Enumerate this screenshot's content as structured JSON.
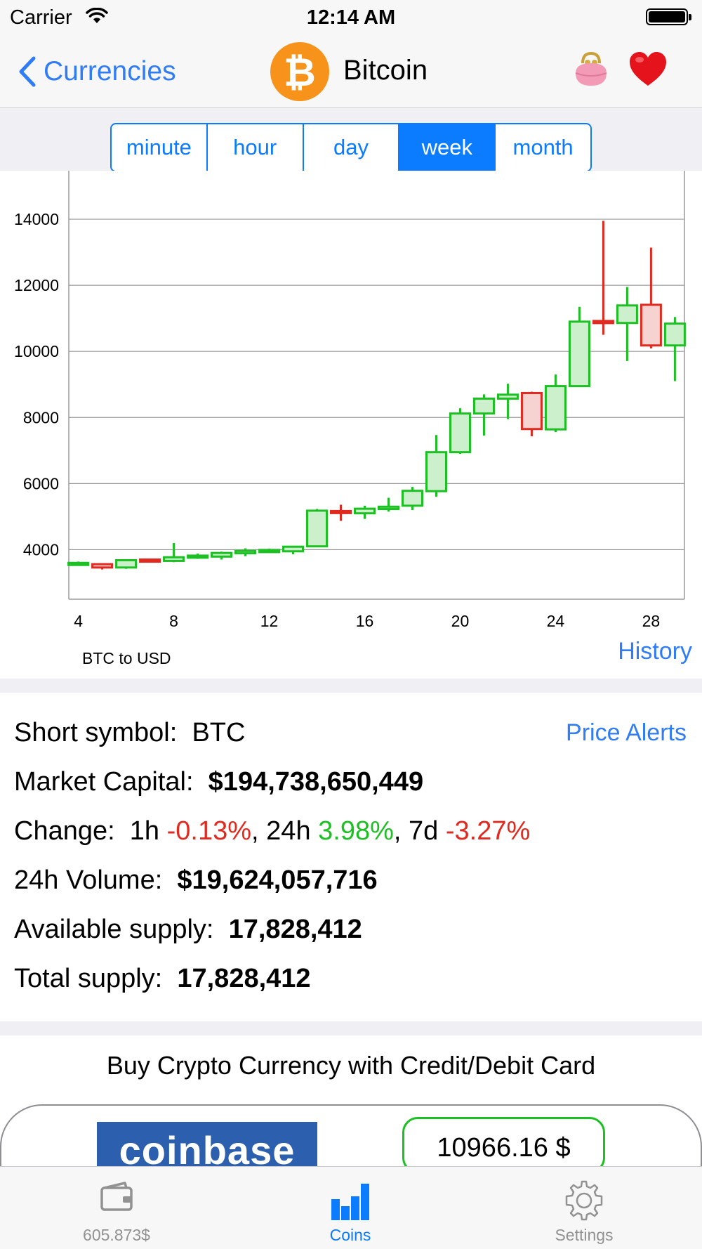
{
  "status_bar": {
    "carrier": "Carrier",
    "time": "12:14 AM"
  },
  "nav": {
    "back_label": "Currencies",
    "coin_symbol_glyph": "₿",
    "coin_name": "Bitcoin"
  },
  "segments": [
    {
      "label": "minute",
      "active": false
    },
    {
      "label": "hour",
      "active": false
    },
    {
      "label": "day",
      "active": false
    },
    {
      "label": "week",
      "active": true
    },
    {
      "label": "month",
      "active": false
    }
  ],
  "chart_data": {
    "type": "candlestick",
    "title": "",
    "caption": "BTC to USD",
    "x_ticks": [
      4,
      8,
      12,
      16,
      20,
      24,
      28
    ],
    "y_ticks": [
      4000,
      6000,
      8000,
      10000,
      12000,
      14000
    ],
    "xlim": [
      3.6,
      29.4
    ],
    "ylim": [
      2500,
      15000
    ],
    "grid": true,
    "colors": {
      "up": "#1cc022",
      "up_fill": "#ccefcc",
      "down": "#e0291f",
      "down_fill": "#f6d3d1"
    },
    "candles": [
      {
        "x": 4,
        "open": 3560,
        "close": 3600,
        "high": 3640,
        "low": 3530
      },
      {
        "x": 5,
        "open": 3560,
        "close": 3460,
        "high": 3580,
        "low": 3400
      },
      {
        "x": 6,
        "open": 3460,
        "close": 3680,
        "high": 3700,
        "low": 3420
      },
      {
        "x": 7,
        "open": 3700,
        "close": 3660,
        "high": 3720,
        "low": 3620
      },
      {
        "x": 8,
        "open": 3660,
        "close": 3770,
        "high": 4200,
        "low": 3620
      },
      {
        "x": 9,
        "open": 3760,
        "close": 3820,
        "high": 3880,
        "low": 3720
      },
      {
        "x": 10,
        "open": 3790,
        "close": 3900,
        "high": 3940,
        "low": 3700
      },
      {
        "x": 11,
        "open": 3890,
        "close": 3960,
        "high": 4040,
        "low": 3800
      },
      {
        "x": 12,
        "open": 3960,
        "close": 3990,
        "high": 4030,
        "low": 3920
      },
      {
        "x": 13,
        "open": 3950,
        "close": 4090,
        "high": 4110,
        "low": 3860
      },
      {
        "x": 14,
        "open": 4100,
        "close": 5180,
        "high": 5230,
        "low": 4080
      },
      {
        "x": 15,
        "open": 5170,
        "close": 5160,
        "high": 5360,
        "low": 4870
      },
      {
        "x": 16,
        "open": 5100,
        "close": 5240,
        "high": 5330,
        "low": 4930
      },
      {
        "x": 17,
        "open": 5230,
        "close": 5300,
        "high": 5570,
        "low": 5150
      },
      {
        "x": 18,
        "open": 5330,
        "close": 5780,
        "high": 5900,
        "low": 5200
      },
      {
        "x": 19,
        "open": 5770,
        "close": 6950,
        "high": 7470,
        "low": 5600
      },
      {
        "x": 20,
        "open": 6950,
        "close": 8120,
        "high": 8280,
        "low": 6900
      },
      {
        "x": 21,
        "open": 8120,
        "close": 8570,
        "high": 8700,
        "low": 7450
      },
      {
        "x": 22,
        "open": 8570,
        "close": 8690,
        "high": 9020,
        "low": 7950
      },
      {
        "x": 23,
        "open": 8740,
        "close": 7650,
        "high": 8780,
        "low": 7430
      },
      {
        "x": 24,
        "open": 7640,
        "close": 8950,
        "high": 9300,
        "low": 7560
      },
      {
        "x": 25,
        "open": 8950,
        "close": 10900,
        "high": 11350,
        "low": 8950
      },
      {
        "x": 26,
        "open": 10920,
        "close": 10870,
        "high": 13950,
        "low": 10500
      },
      {
        "x": 27,
        "open": 10860,
        "close": 11390,
        "high": 11950,
        "low": 9710
      },
      {
        "x": 28,
        "open": 11410,
        "close": 10180,
        "high": 13140,
        "low": 10090
      },
      {
        "x": 29,
        "open": 10180,
        "close": 10840,
        "high": 11040,
        "low": 9100
      }
    ]
  },
  "history_label": "History",
  "info": {
    "price_alerts": "Price Alerts",
    "short_symbol_label": "Short symbol:",
    "short_symbol_value": "BTC",
    "market_cap_label": "Market Capital:",
    "market_cap_value": "$194,738,650,449",
    "change_label": "Change:",
    "change_1h_label": "1h",
    "change_1h_value": "-0.13%",
    "change_24h_label": "24h",
    "change_24h_value": "3.98%",
    "change_7d_label": "7d",
    "change_7d_value": "-3.27%",
    "volume_label": "24h Volume:",
    "volume_value": "$19,624,057,716",
    "available_supply_label": "Available supply:",
    "available_supply_value": "17,828,412",
    "total_supply_label": "Total supply:",
    "total_supply_value": "17,828,412"
  },
  "buy": {
    "title": "Buy Crypto Currency with Credit/Debit Card",
    "provider": "coinbase",
    "price": "10966.16 $"
  },
  "tabs": [
    {
      "label": "605.873$",
      "icon": "wallet-icon",
      "active": false
    },
    {
      "label": "Coins",
      "icon": "bar-chart-icon",
      "active": true
    },
    {
      "label": "Settings",
      "icon": "gear-icon",
      "active": false
    }
  ]
}
